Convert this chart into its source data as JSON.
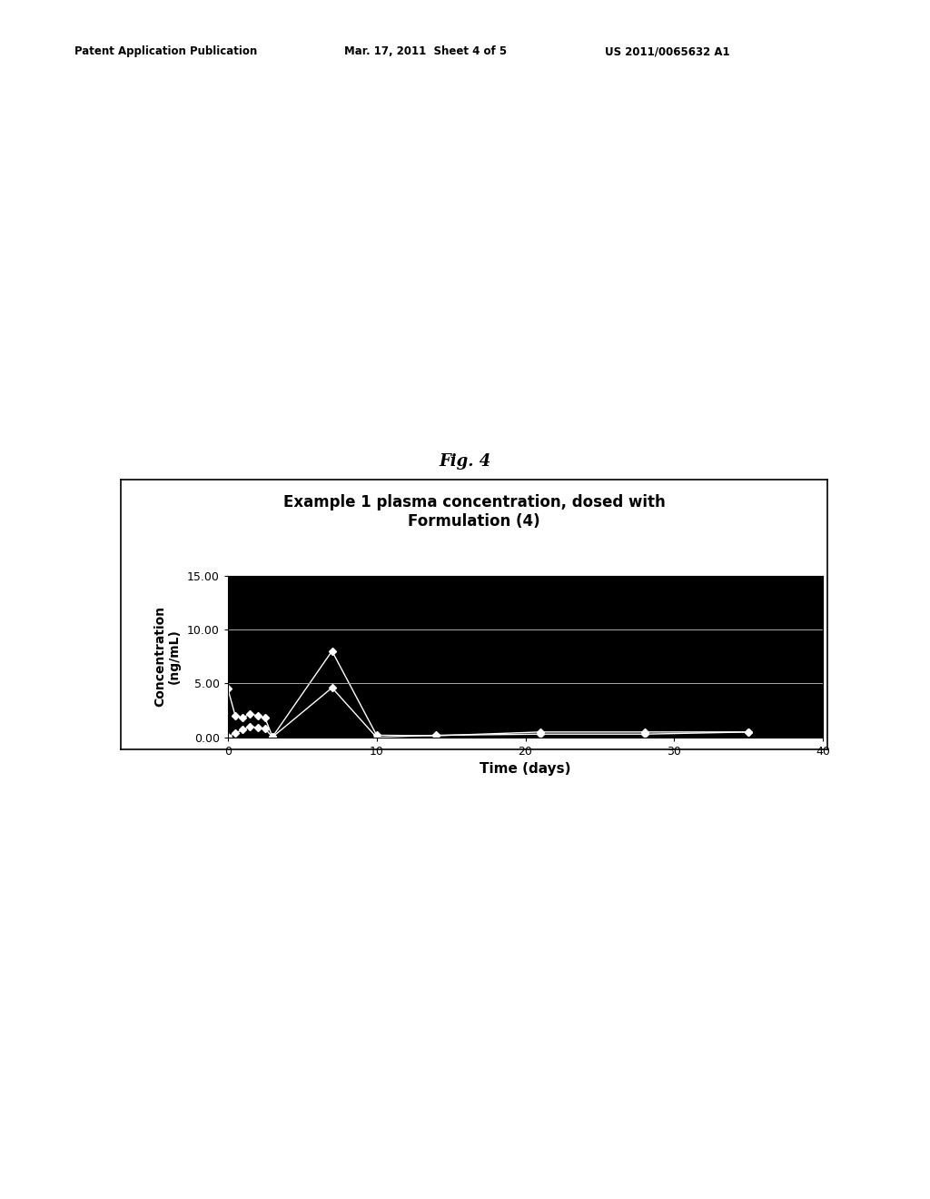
{
  "title_line1": "Example 1 plasma concentration, dosed with",
  "title_line2": "Formulation (4)",
  "fig_label": "Fig. 4",
  "xlabel": "Time (days)",
  "ylabel": "Concentration\n(ng/mL)",
  "patent_left": "Patent Application Publication",
  "patent_mid": "Mar. 17, 2011  Sheet 4 of 5",
  "patent_right": "US 2011/0065632 A1",
  "xlim": [
    0,
    40
  ],
  "ylim": [
    0,
    15
  ],
  "yticks": [
    0.0,
    5.0,
    10.0,
    15.0
  ],
  "xticks": [
    0,
    10,
    20,
    30,
    40
  ],
  "plot_bg": "#000000",
  "fig_bg": "#ffffff",
  "series1_x": [
    0,
    0.5,
    1,
    1.5,
    2,
    2.5,
    3,
    7,
    10,
    14,
    21,
    28,
    35
  ],
  "series1_y": [
    4.5,
    2.0,
    1.8,
    2.2,
    2.0,
    1.8,
    0.05,
    8.0,
    0.2,
    0.15,
    0.5,
    0.5,
    0.5
  ],
  "series2_x": [
    0,
    0.5,
    1,
    1.5,
    2,
    2.5,
    3,
    7,
    10,
    14,
    21,
    28,
    35
  ],
  "series2_y": [
    0.05,
    0.4,
    0.7,
    1.0,
    0.9,
    0.8,
    0.03,
    4.6,
    0.0,
    0.2,
    0.3,
    0.3,
    0.5
  ],
  "marker_color": "#ffffff",
  "line_color": "#ffffff",
  "gridline_color": "#aaaaaa"
}
